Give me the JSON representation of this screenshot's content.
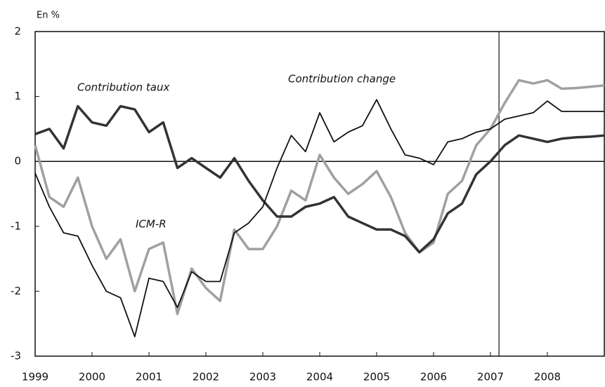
{
  "chart_data": {
    "type": "line",
    "unit_label": "En %",
    "x": [
      1999,
      1999.25,
      1999.5,
      1999.75,
      2000,
      2000.25,
      2000.5,
      2000.75,
      2001,
      2001.25,
      2001.5,
      2001.75,
      2002,
      2002.25,
      2002.5,
      2002.75,
      2003,
      2003.25,
      2003.5,
      2003.75,
      2004,
      2004.25,
      2004.5,
      2004.75,
      2005,
      2005.25,
      2005.5,
      2005.75,
      2006,
      2006.25,
      2006.5,
      2006.75,
      2007,
      2007.25,
      2007.5,
      2007.75,
      2008,
      2008.25,
      2008.5,
      2008.75,
      2009
    ],
    "series": [
      {
        "name": "Contribution taux",
        "color": "#333333",
        "values": [
          0.42,
          0.5,
          0.2,
          0.85,
          0.6,
          0.55,
          0.85,
          0.8,
          0.45,
          0.6,
          -0.1,
          0.05,
          -0.1,
          -0.25,
          0.05,
          -0.3,
          -0.6,
          -0.85,
          -0.85,
          -0.7,
          -0.65,
          -0.55,
          -0.85,
          -0.95,
          -1.05,
          -1.05,
          -1.15,
          -1.4,
          -1.2,
          -0.8,
          -0.65,
          -0.2,
          0.0,
          0.25,
          0.4,
          0.35,
          0.3,
          0.35,
          0.37,
          0.38,
          0.4
        ]
      },
      {
        "name": "Contribution change",
        "color": "#111111",
        "values": [
          -0.18,
          -0.7,
          -1.1,
          -1.15,
          -1.6,
          -2.0,
          -2.1,
          -2.7,
          -1.8,
          -1.85,
          -2.25,
          -1.7,
          -1.85,
          -1.85,
          -1.1,
          -0.95,
          -0.7,
          -0.1,
          0.4,
          0.15,
          0.75,
          0.3,
          0.45,
          0.55,
          0.95,
          0.5,
          0.1,
          0.05,
          -0.05,
          0.3,
          0.35,
          0.45,
          0.5,
          0.65,
          0.7,
          0.75,
          0.93,
          0.77,
          0.77,
          0.77,
          0.77
        ]
      },
      {
        "name": "ICM-R",
        "color": "#a0a0a0",
        "values": [
          0.25,
          -0.55,
          -0.7,
          -0.25,
          -1.0,
          -1.5,
          -1.2,
          -2.0,
          -1.35,
          -1.25,
          -2.35,
          -1.65,
          -1.95,
          -2.15,
          -1.05,
          -1.35,
          -1.35,
          -1.0,
          -0.45,
          -0.6,
          0.1,
          -0.25,
          -0.5,
          -0.35,
          -0.15,
          -0.55,
          -1.1,
          -1.4,
          -1.25,
          -0.5,
          -0.3,
          0.25,
          0.5,
          0.9,
          1.25,
          1.2,
          1.25,
          1.12,
          1.13,
          1.15,
          1.17
        ]
      }
    ],
    "xlim": [
      1999,
      2009
    ],
    "xticks": [
      1999,
      2000,
      2001,
      2002,
      2003,
      2004,
      2005,
      2006,
      2007,
      2008
    ],
    "ylim": [
      -3,
      2
    ],
    "yticks": [
      -3,
      -2,
      -1,
      0,
      1,
      2
    ],
    "vline": 2007.15
  }
}
